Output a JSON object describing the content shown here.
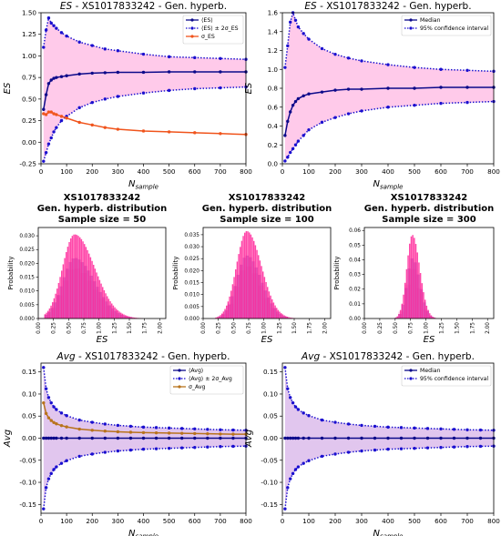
{
  "chart_data": [
    {
      "type": "line",
      "title_prefix": "ES",
      "title_rest": " - XS1017833242  -  Gen. hyperb.",
      "xlabel_main": "N",
      "xlabel_sub": "sample",
      "ylabel": "ES",
      "xlim": [
        0,
        800
      ],
      "ylim": [
        -0.25,
        1.5
      ],
      "xticks": [
        "0",
        "100",
        "200",
        "300",
        "400",
        "500",
        "600",
        "700",
        "800"
      ],
      "yticks": [
        "-0.25",
        "0.00",
        "0.25",
        "0.50",
        "0.75",
        "1.00",
        "1.25",
        "1.50"
      ],
      "fill_between": "band_upper_lower",
      "legend_position": "top-right",
      "x": [
        10,
        20,
        30,
        40,
        50,
        60,
        80,
        100,
        150,
        200,
        250,
        300,
        400,
        500,
        600,
        700,
        800
      ],
      "series": [
        {
          "name": "⟨ES⟩",
          "color": "#0c0a8a",
          "style": "solid",
          "values": [
            0.38,
            0.55,
            0.68,
            0.72,
            0.74,
            0.75,
            0.76,
            0.77,
            0.79,
            0.8,
            0.805,
            0.81,
            0.81,
            0.815,
            0.815,
            0.815,
            0.815
          ]
        },
        {
          "name": "⟨ES⟩ ± 2σ_ES",
          "color": "#1a0fcf",
          "style": "dotted",
          "values": [
            1.1,
            1.3,
            1.44,
            1.38,
            1.35,
            1.32,
            1.27,
            1.23,
            1.16,
            1.12,
            1.08,
            1.06,
            1.02,
            0.99,
            0.98,
            0.97,
            0.96
          ]
        },
        {
          "name": "",
          "color": "#1a0fcf",
          "style": "dotted",
          "values": [
            -0.22,
            -0.12,
            -0.02,
            0.05,
            0.12,
            0.17,
            0.25,
            0.3,
            0.4,
            0.46,
            0.5,
            0.53,
            0.57,
            0.6,
            0.62,
            0.63,
            0.64
          ]
        },
        {
          "name": "σ_ES",
          "color": "#f0541c",
          "style": "solid",
          "values": [
            0.33,
            0.32,
            0.35,
            0.35,
            0.33,
            0.32,
            0.3,
            0.28,
            0.23,
            0.2,
            0.17,
            0.15,
            0.13,
            0.12,
            0.11,
            0.1,
            0.09
          ]
        }
      ]
    },
    {
      "type": "line",
      "title_prefix": "ES",
      "title_rest": " - XS1017833242  -  Gen. hyperb.",
      "xlabel_main": "N",
      "xlabel_sub": "sample",
      "ylabel": "ES",
      "xlim": [
        0,
        800
      ],
      "ylim": [
        0.0,
        1.6
      ],
      "xticks": [
        "0",
        "100",
        "200",
        "300",
        "400",
        "500",
        "600",
        "700",
        "800"
      ],
      "yticks": [
        "0.0",
        "0.2",
        "0.4",
        "0.6",
        "0.8",
        "1.0",
        "1.2",
        "1.4",
        "1.6"
      ],
      "fill_between": "band_upper_lower",
      "legend_position": "top-right",
      "x": [
        10,
        20,
        30,
        40,
        50,
        60,
        80,
        100,
        150,
        200,
        250,
        300,
        400,
        500,
        600,
        700,
        800
      ],
      "series": [
        {
          "name": "Median",
          "color": "#0c0a8a",
          "style": "solid",
          "values": [
            0.3,
            0.45,
            0.55,
            0.62,
            0.66,
            0.69,
            0.72,
            0.74,
            0.76,
            0.78,
            0.79,
            0.79,
            0.8,
            0.8,
            0.81,
            0.81,
            0.81
          ]
        },
        {
          "name": "95% confidence interval",
          "color": "#1a0fcf",
          "style": "dotted",
          "values": [
            1.02,
            1.25,
            1.5,
            1.6,
            1.52,
            1.45,
            1.38,
            1.32,
            1.22,
            1.16,
            1.12,
            1.09,
            1.05,
            1.02,
            1.0,
            0.99,
            0.98
          ]
        },
        {
          "name": "",
          "color": "#1a0fcf",
          "style": "dotted",
          "values": [
            0.03,
            0.07,
            0.12,
            0.16,
            0.2,
            0.24,
            0.3,
            0.36,
            0.44,
            0.49,
            0.53,
            0.56,
            0.6,
            0.62,
            0.64,
            0.65,
            0.66
          ]
        }
      ]
    },
    {
      "type": "bar",
      "title_lines": [
        "XS1017833242",
        "Gen. hyperb. distribution",
        "Sample size = 50"
      ],
      "xlabel": "ES",
      "ylabel": "Probability",
      "xlim": [
        0.0,
        2.1
      ],
      "ylim": [
        0,
        0.033
      ],
      "xticks": [
        "0.00",
        "0.25",
        "0.50",
        "0.75",
        "1.00",
        "1.25",
        "1.50",
        "1.75",
        "2.00"
      ],
      "yticks": [
        "0.000",
        "0.005",
        "0.010",
        "0.015",
        "0.020",
        "0.025",
        "0.030"
      ],
      "fit_mode": 0.6,
      "fit_peak": 0.0305,
      "fit_sigma_left": 0.2,
      "fit_sigma_right": 0.33,
      "bin_width": 0.025,
      "range": [
        0.1,
        2.05
      ]
    },
    {
      "type": "bar",
      "title_lines": [
        "XS1017833242",
        "Gen. hyperb. distribution",
        "Sample size = 100"
      ],
      "xlabel": "ES",
      "ylabel": "Probability",
      "xlim": [
        0.0,
        2.1
      ],
      "ylim": [
        0,
        0.038
      ],
      "xticks": [
        "0.00",
        "0.25",
        "0.50",
        "0.75",
        "1.00",
        "1.25",
        "1.50",
        "1.75",
        "2.00"
      ],
      "yticks": [
        "0.000",
        "0.005",
        "0.010",
        "0.015",
        "0.020",
        "0.025",
        "0.030",
        "0.035"
      ],
      "fit_mode": 0.72,
      "fit_peak": 0.0365,
      "fit_sigma_left": 0.17,
      "fit_sigma_right": 0.24,
      "bin_width": 0.025,
      "range": [
        0.2,
        1.85
      ]
    },
    {
      "type": "bar",
      "title_lines": [
        "XS1017833242",
        "Gen. hyperb. distribution",
        "Sample size = 300"
      ],
      "xlabel": "ES",
      "ylabel": "Probability",
      "xlim": [
        0.0,
        2.1
      ],
      "ylim": [
        0,
        0.062
      ],
      "xticks": [
        "0.00",
        "0.25",
        "0.50",
        "0.75",
        "1.00",
        "1.25",
        "1.50",
        "1.75",
        "2.00"
      ],
      "yticks": [
        "0.00",
        "0.01",
        "0.02",
        "0.03",
        "0.04",
        "0.05",
        "0.06"
      ],
      "fit_mode": 0.78,
      "fit_peak": 0.057,
      "fit_sigma_left": 0.09,
      "fit_sigma_right": 0.12,
      "bin_width": 0.025,
      "range": [
        0.45,
        1.25
      ]
    },
    {
      "type": "line",
      "title_prefix": "Avg",
      "title_rest": " - XS1017833242  -  Gen. hyperb.",
      "xlabel_main": "N",
      "xlabel_sub": "sample",
      "ylabel": "Avg",
      "xlim": [
        0,
        800
      ],
      "ylim": [
        -0.17,
        0.17
      ],
      "xticks": [
        "0",
        "100",
        "200",
        "300",
        "400",
        "500",
        "600",
        "700",
        "800"
      ],
      "yticks": [
        "-0.15",
        "-0.10",
        "-0.05",
        "0.00",
        "0.05",
        "0.10",
        "0.15"
      ],
      "fill_between": "band_upper_lower",
      "legend_position": "top-right",
      "x": [
        10,
        20,
        30,
        40,
        50,
        60,
        80,
        100,
        150,
        200,
        250,
        300,
        350,
        400,
        450,
        500,
        550,
        600,
        650,
        700,
        750,
        800
      ],
      "series": [
        {
          "name": "⟨Avg⟩",
          "color": "#0c0a8a",
          "style": "solid",
          "values": [
            0.0,
            0.0,
            0.0,
            0.0,
            0.0,
            0.0,
            0.0,
            0.0,
            0.0,
            0.0,
            0.0,
            0.0,
            0.0,
            0.0,
            0.0,
            0.0,
            0.0,
            0.0,
            0.0,
            0.0,
            0.0,
            0.0
          ]
        },
        {
          "name": "⟨Avg⟩ ± 2σ_Avg",
          "color": "#1a0fcf",
          "style": "dotted",
          "values": [
            0.16,
            0.112,
            0.092,
            0.08,
            0.071,
            0.065,
            0.057,
            0.051,
            0.041,
            0.036,
            0.032,
            0.029,
            0.027,
            0.025,
            0.024,
            0.023,
            0.022,
            0.021,
            0.02,
            0.019,
            0.0185,
            0.018
          ]
        },
        {
          "name": "",
          "color": "#1a0fcf",
          "style": "dotted",
          "values": [
            -0.16,
            -0.112,
            -0.092,
            -0.08,
            -0.071,
            -0.065,
            -0.057,
            -0.051,
            -0.041,
            -0.036,
            -0.032,
            -0.029,
            -0.027,
            -0.025,
            -0.024,
            -0.023,
            -0.022,
            -0.021,
            -0.02,
            -0.019,
            -0.0185,
            -0.018
          ]
        },
        {
          "name": "σ_Avg",
          "color": "#b8731c",
          "style": "solid",
          "values": [
            0.08,
            0.056,
            0.046,
            0.04,
            0.0355,
            0.0325,
            0.0285,
            0.0255,
            0.0205,
            0.018,
            0.016,
            0.0145,
            0.0135,
            0.0125,
            0.012,
            0.0115,
            0.011,
            0.0105,
            0.01,
            0.0095,
            0.009,
            0.009
          ]
        }
      ]
    },
    {
      "type": "line",
      "title_prefix": "Avg",
      "title_rest": " - XS1017833242  -  Gen. hyperb.",
      "xlabel_main": "N",
      "xlabel_sub": "sample",
      "ylabel": "Avg",
      "xlim": [
        0,
        800
      ],
      "ylim": [
        -0.17,
        0.17
      ],
      "xticks": [
        "0",
        "100",
        "200",
        "300",
        "400",
        "500",
        "600",
        "700",
        "800"
      ],
      "yticks": [
        "-0.15",
        "-0.10",
        "-0.05",
        "0.00",
        "0.05",
        "0.10",
        "0.15"
      ],
      "fill_between": "band_upper_lower",
      "legend_position": "top-right",
      "x": [
        10,
        20,
        30,
        40,
        50,
        60,
        80,
        100,
        150,
        200,
        250,
        300,
        350,
        400,
        450,
        500,
        550,
        600,
        650,
        700,
        750,
        800
      ],
      "series": [
        {
          "name": "Median",
          "color": "#0c0a8a",
          "style": "solid",
          "values": [
            0.0,
            0.0,
            0.0,
            0.0,
            0.0,
            0.0,
            0.0,
            0.0,
            0.0,
            0.0,
            0.0,
            0.0,
            0.0,
            0.0,
            0.0,
            0.0,
            0.0,
            0.0,
            0.0,
            0.0,
            0.0,
            0.0
          ]
        },
        {
          "name": "95% confidence interval",
          "color": "#1a0fcf",
          "style": "dotted",
          "values": [
            0.16,
            0.112,
            0.092,
            0.08,
            0.071,
            0.065,
            0.057,
            0.051,
            0.041,
            0.036,
            0.032,
            0.029,
            0.027,
            0.025,
            0.024,
            0.023,
            0.022,
            0.021,
            0.02,
            0.019,
            0.0185,
            0.018
          ]
        },
        {
          "name": "",
          "color": "#1a0fcf",
          "style": "dotted",
          "values": [
            -0.16,
            -0.112,
            -0.092,
            -0.08,
            -0.071,
            -0.065,
            -0.057,
            -0.051,
            -0.041,
            -0.036,
            -0.032,
            -0.029,
            -0.027,
            -0.025,
            -0.024,
            -0.023,
            -0.022,
            -0.021,
            -0.02,
            -0.019,
            -0.0185,
            -0.018
          ]
        }
      ]
    }
  ],
  "colors": {
    "band_pink": "#ff9ed8",
    "band_purple": "#c898e0",
    "hist_pink": "#ff1f96",
    "hist_blue": "#7a5fc8"
  }
}
